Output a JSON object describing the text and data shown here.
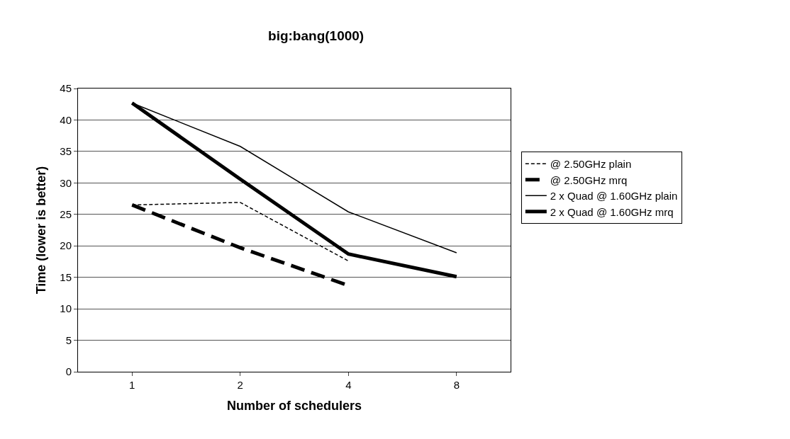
{
  "chart_data": {
    "type": "line",
    "title": "big:bang(1000)",
    "xlabel": "Number of schedulers",
    "ylabel": "Time (lower is better)",
    "categories": [
      "1",
      "2",
      "4",
      "8"
    ],
    "series": [
      {
        "name": "@ 2.50GHz plain",
        "color": "#000000",
        "line_style": "dashed",
        "values": [
          26.5,
          26.9,
          17.6,
          null
        ]
      },
      {
        "name": "@ 2.50GHz mrq",
        "color": "#000000",
        "line_style": "dashed",
        "values": [
          26.5,
          19.7,
          13.7,
          null
        ]
      },
      {
        "name": "2 x Quad @ 1.60GHz plain",
        "color": "#000000",
        "line_style": "solid",
        "values": [
          42.7,
          35.8,
          25.4,
          18.9
        ]
      },
      {
        "name": "2 x Quad @ 1.60GHz mrq",
        "color": "#000000",
        "line_style": "solid",
        "values": [
          42.7,
          30.6,
          18.7,
          15.1
        ]
      }
    ],
    "ylim": [
      0,
      45
    ],
    "yticks": [
      0,
      5,
      10,
      15,
      20,
      25,
      30,
      35,
      40,
      45
    ],
    "grid": "y",
    "legend": "right",
    "marker": "none"
  }
}
